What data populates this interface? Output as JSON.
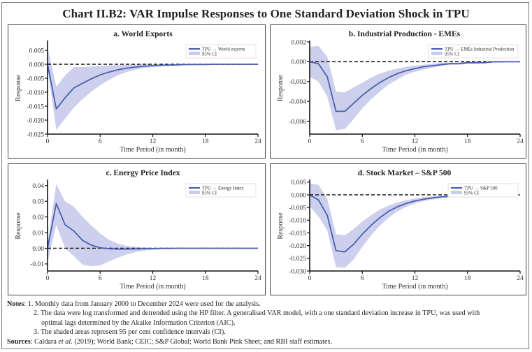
{
  "title": "Chart II.B2: VAR Impulse Responses to One Standard Deviation Shock in TPU",
  "colors": {
    "line": "#4a5fb0",
    "band": "#c9cdec",
    "zero": "#111111",
    "axis": "#111111"
  },
  "chart_data": [
    {
      "id": "a",
      "type": "line",
      "title": "a. World Exports",
      "xlabel": "Time Period (in month)",
      "ylabel": "Response",
      "xlim": [
        0,
        24
      ],
      "ylim": [
        -0.025,
        0.008
      ],
      "xticks": [
        0,
        6,
        12,
        18,
        24
      ],
      "yticks": [
        0.005,
        0.0,
        -0.005,
        -0.01,
        -0.015,
        -0.02,
        -0.025
      ],
      "ytick_labels": [
        "0.005",
        "0.000",
        "-0.005",
        "-0.010",
        "-0.015",
        "-0.020",
        "-0.025"
      ],
      "legend": {
        "line": "TPU → World exports",
        "band": "95% CI",
        "position": "top-right"
      },
      "x": [
        0,
        1,
        2,
        3,
        4,
        5,
        6,
        7,
        8,
        9,
        10,
        11,
        12,
        13,
        14,
        15,
        16,
        17,
        18,
        19,
        20,
        21,
        22,
        23,
        24
      ],
      "response": [
        0.0,
        -0.016,
        -0.012,
        -0.0085,
        -0.0068,
        -0.0052,
        -0.0038,
        -0.0028,
        -0.002,
        -0.0014,
        -0.001,
        -0.0007,
        -0.0005,
        -0.0004,
        -0.0003,
        -0.0002,
        -0.0001,
        -0.0001,
        -0.0001,
        0.0,
        0.0,
        0.0,
        0.0,
        0.0,
        0.0
      ],
      "ci_upper": [
        0.006,
        -0.008,
        -0.004,
        -0.001,
        -0.001,
        -0.0008,
        -0.0006,
        -0.0004,
        -0.0003,
        -0.0002,
        -0.0001,
        -0.0001,
        0.0,
        0.0,
        0.0,
        0.0,
        0.0,
        0.0,
        0.0,
        0.0,
        0.0,
        0.0,
        0.0,
        0.0,
        0.0
      ],
      "ci_lower": [
        -0.001,
        -0.0235,
        -0.0195,
        -0.0155,
        -0.0125,
        -0.0098,
        -0.0075,
        -0.0056,
        -0.004,
        -0.0028,
        -0.002,
        -0.0014,
        -0.001,
        -0.0007,
        -0.0005,
        -0.0004,
        -0.0003,
        -0.0002,
        -0.0002,
        -0.0001,
        -0.0001,
        -0.0001,
        0.0,
        0.0,
        0.0
      ]
    },
    {
      "id": "b",
      "type": "line",
      "title": "b. Industrial Production - EMEs",
      "xlabel": "Time Period (in month)",
      "ylabel": "Response",
      "xlim": [
        0,
        24
      ],
      "ylim": [
        -0.0073,
        0.002
      ],
      "xticks": [
        0,
        6,
        12,
        18,
        24
      ],
      "yticks": [
        0.002,
        0.0,
        -0.002,
        -0.004,
        -0.006
      ],
      "ytick_labels": [
        "0.002",
        "0.000",
        "-0.002",
        "-0.004",
        "-0.006"
      ],
      "legend": {
        "line": "TPU → EMEs Industrial Production",
        "band": "95% CI",
        "position": "top-right"
      },
      "x": [
        0,
        1,
        2,
        3,
        4,
        5,
        6,
        7,
        8,
        9,
        10,
        11,
        12,
        13,
        14,
        15,
        16,
        17,
        18,
        19,
        20,
        21,
        22,
        23,
        24
      ],
      "response": [
        0.0,
        -0.0002,
        -0.0015,
        -0.005,
        -0.005,
        -0.0042,
        -0.0034,
        -0.0027,
        -0.0021,
        -0.0016,
        -0.0012,
        -0.0009,
        -0.0007,
        -0.0005,
        -0.0004,
        -0.0003,
        -0.0002,
        -0.0002,
        -0.0001,
        -0.0001,
        -0.0001,
        0.0,
        0.0,
        0.0,
        0.0
      ],
      "ci_upper": [
        0.0015,
        0.0016,
        0.0005,
        -0.003,
        -0.0031,
        -0.0026,
        -0.0021,
        -0.0016,
        -0.0012,
        -0.0009,
        -0.0007,
        -0.0005,
        -0.0004,
        -0.0003,
        -0.0002,
        -0.0001,
        -0.0001,
        -0.0001,
        0.0,
        0.0,
        0.0,
        0.0,
        0.0,
        0.0,
        0.0
      ],
      "ci_lower": [
        -0.0015,
        -0.002,
        -0.0035,
        -0.0069,
        -0.0068,
        -0.0058,
        -0.0047,
        -0.0038,
        -0.003,
        -0.0023,
        -0.0018,
        -0.0013,
        -0.001,
        -0.0008,
        -0.0006,
        -0.0004,
        -0.0003,
        -0.0003,
        -0.0002,
        -0.0002,
        -0.0001,
        -0.0001,
        -0.0001,
        0.0,
        0.0
      ]
    },
    {
      "id": "c",
      "type": "line",
      "title": "c. Energy Price Index",
      "xlabel": "Time Period (in month)",
      "ylabel": "Response",
      "xlim": [
        0,
        24
      ],
      "ylim": [
        -0.0145,
        0.043
      ],
      "xticks": [
        0,
        6,
        12,
        18,
        24
      ],
      "yticks": [
        0.04,
        0.03,
        0.02,
        0.01,
        0.0,
        -0.01
      ],
      "ytick_labels": [
        "0.04",
        "0.03",
        "0.02",
        "0.01",
        "0.00",
        "-0.01"
      ],
      "legend": {
        "line": "TPU → Energy Index",
        "band": "95% CI",
        "position": "top-right"
      },
      "x": [
        0,
        1,
        2,
        3,
        4,
        5,
        6,
        7,
        8,
        9,
        10,
        11,
        12,
        13,
        14,
        15,
        16,
        17,
        18,
        19,
        20,
        21,
        22,
        23,
        24
      ],
      "response": [
        0.0,
        0.0285,
        0.015,
        0.011,
        0.005,
        0.002,
        0.0003,
        -0.0003,
        -0.0005,
        -0.0005,
        -0.0004,
        -0.0003,
        -0.0002,
        -0.0001,
        -0.0001,
        0.0,
        0.0,
        0.0,
        0.0,
        0.0,
        0.0,
        0.0,
        0.0,
        0.0,
        0.0
      ],
      "ci_upper": [
        0.003,
        0.041,
        0.03,
        0.0265,
        0.02,
        0.0145,
        0.0095,
        0.0055,
        0.003,
        0.0015,
        0.0008,
        0.0004,
        0.0002,
        0.0001,
        0.0,
        0.0,
        0.0,
        0.0,
        0.0,
        0.0,
        0.0,
        0.0,
        0.0,
        0.0,
        0.0
      ],
      "ci_lower": [
        -0.009,
        0.015,
        0.0,
        -0.005,
        -0.0105,
        -0.0115,
        -0.011,
        -0.0085,
        -0.006,
        -0.004,
        -0.0025,
        -0.0015,
        -0.001,
        -0.0007,
        -0.0005,
        -0.0003,
        -0.0002,
        -0.0001,
        -0.0001,
        0.0,
        0.0,
        0.0,
        0.0,
        0.0,
        0.0
      ]
    },
    {
      "id": "d",
      "type": "line",
      "title": "d. Stock Market – S&P 500",
      "xlabel": "Time Period (in month)",
      "ylabel": "Response",
      "xlim": [
        0,
        24
      ],
      "ylim": [
        -0.03,
        0.0055
      ],
      "xticks": [
        0,
        6,
        12,
        18,
        24
      ],
      "yticks": [
        0.005,
        0.0,
        -0.005,
        -0.01,
        -0.015,
        -0.02,
        -0.025,
        -0.03
      ],
      "ytick_labels": [
        "0.005",
        "0.000",
        "-0.005",
        "-0.010",
        "-0.015",
        "-0.020",
        "-0.025",
        "-0.030"
      ],
      "legend": {
        "line": "TPU → S&P 500",
        "band": "95% CI",
        "position": "top-right"
      },
      "x": [
        0,
        1,
        2,
        3,
        4,
        5,
        6,
        7,
        8,
        9,
        10,
        11,
        12,
        13,
        14,
        15,
        16,
        17,
        18,
        19,
        20,
        21,
        22,
        23,
        24
      ],
      "response": [
        0.0,
        -0.002,
        -0.008,
        -0.022,
        -0.0225,
        -0.0195,
        -0.0155,
        -0.012,
        -0.009,
        -0.0065,
        -0.0047,
        -0.0034,
        -0.0024,
        -0.0017,
        -0.0012,
        -0.0008,
        -0.0006,
        -0.0004,
        -0.0002,
        -0.0001,
        -0.0001,
        0.0,
        0.0,
        0.0,
        0.0
      ],
      "ci_upper": [
        0.0045,
        0.004,
        -0.0015,
        -0.0155,
        -0.016,
        -0.0135,
        -0.0105,
        -0.008,
        -0.0058,
        -0.0042,
        -0.003,
        -0.0021,
        -0.0014,
        -0.0009,
        -0.0006,
        -0.0004,
        -0.0002,
        -0.0001,
        0.0,
        0.0,
        0.0,
        0.0,
        0.0,
        0.0,
        0.0
      ],
      "ci_lower": [
        -0.0045,
        -0.0085,
        -0.014,
        -0.0285,
        -0.0288,
        -0.0255,
        -0.0205,
        -0.016,
        -0.0122,
        -0.009,
        -0.0065,
        -0.0047,
        -0.0034,
        -0.0025,
        -0.0018,
        -0.0013,
        -0.0009,
        -0.0006,
        -0.0004,
        -0.0003,
        -0.0002,
        -0.0001,
        -0.0001,
        0.0,
        0.0
      ]
    }
  ],
  "notes": {
    "label": "Notes",
    "items": [
      "1.  Monthly data from January 2000 to December 2024 were used for the analysis.",
      "2.  The data were log transformed and detrended using the HP filter. A generalised VAR model, with a one standard deviation increase in TPU, was used with",
      "optimal lags determined by the Akaike Information Criterion (AIC).",
      "3.  The shaded areas represent 95 per cent confidence intervals (CI)."
    ]
  },
  "sources": {
    "label": "Sources",
    "text_before": "Caldara ",
    "text_italic": "et al.",
    "text_after": " (2019); World Bank; CEIC; S&P Global; World Bank Pink Sheet; and RBI staff estimates."
  }
}
